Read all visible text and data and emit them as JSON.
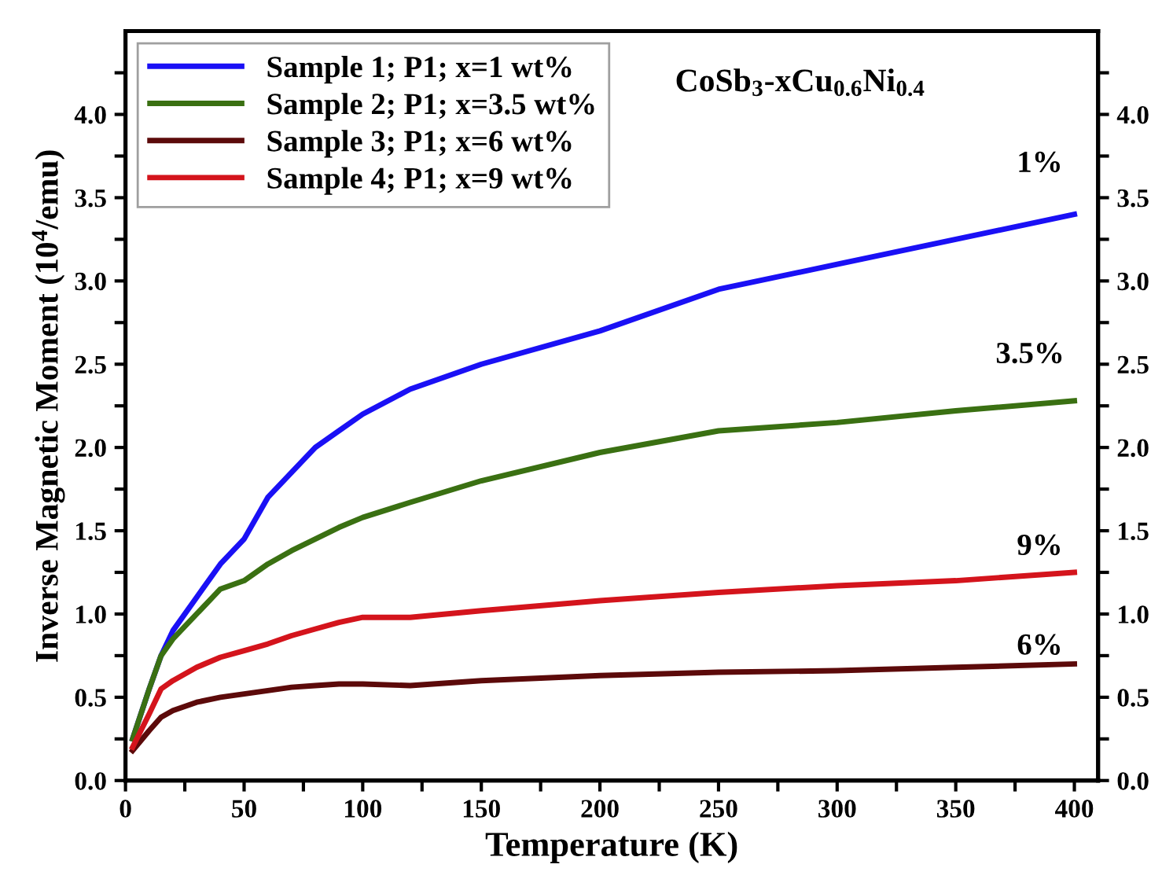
{
  "chart_data": {
    "type": "line",
    "xlabel": "Temperature (K)",
    "ylabel": "Inverse Magnetic Moment (10$^{4}$/emu)",
    "xlim": [
      0,
      410
    ],
    "ylim": [
      0,
      4.5
    ],
    "y2lim": [
      0,
      4.5
    ],
    "xticks": [
      0,
      {
        "value": 25,
        "label": null
      },
      50,
      {
        "value": 75,
        "label": null
      },
      100,
      {
        "value": 125,
        "label": null
      },
      150,
      {
        "value": 175,
        "label": null
      },
      200,
      {
        "value": 225,
        "label": null
      },
      250,
      {
        "value": 275,
        "label": null
      },
      300,
      {
        "value": 325,
        "label": null
      },
      350,
      {
        "value": 375,
        "label": null
      },
      400
    ],
    "yticks": [
      {
        "value": 0,
        "label": "0.0"
      },
      {
        "value": 0.25,
        "label": null
      },
      {
        "value": 0.5,
        "label": "0.5"
      },
      {
        "value": 0.75,
        "label": null
      },
      {
        "value": 1,
        "label": "1.0"
      },
      {
        "value": 1.25,
        "label": null
      },
      {
        "value": 1.5,
        "label": "1.5"
      },
      {
        "value": 1.75,
        "label": null
      },
      {
        "value": 2,
        "label": "2.0"
      },
      {
        "value": 2.25,
        "label": null
      },
      {
        "value": 2.5,
        "label": "2.5"
      },
      {
        "value": 2.75,
        "label": null
      },
      {
        "value": 3,
        "label": "3.0"
      },
      {
        "value": 3.25,
        "label": null
      },
      {
        "value": 3.5,
        "label": "3.5"
      },
      {
        "value": 3.75,
        "label": null
      },
      {
        "value": 4,
        "label": "4.0"
      },
      {
        "value": 4.25,
        "label": null
      }
    ],
    "y2ticks": [
      {
        "value": 0,
        "label": "0.0"
      },
      {
        "value": 0.25,
        "label": null
      },
      {
        "value": 0.5,
        "label": "0.5"
      },
      {
        "value": 0.75,
        "label": null
      },
      {
        "value": 1,
        "label": "1.0"
      },
      {
        "value": 1.25,
        "label": null
      },
      {
        "value": 1.5,
        "label": "1.5"
      },
      {
        "value": 1.75,
        "label": null
      },
      {
        "value": 2,
        "label": "2.0"
      },
      {
        "value": 2.25,
        "label": null
      },
      {
        "value": 2.5,
        "label": "2.5"
      },
      {
        "value": 2.75,
        "label": null
      },
      {
        "value": 3,
        "label": "3.0"
      },
      {
        "value": 3.25,
        "label": null
      },
      {
        "value": 3.5,
        "label": "3.5"
      },
      {
        "value": 3.75,
        "label": null
      },
      {
        "value": 4,
        "label": "4.0"
      },
      {
        "value": 4.25,
        "label": null
      }
    ],
    "x": [
      3,
      10,
      15,
      20,
      30,
      40,
      50,
      60,
      70,
      80,
      90,
      100,
      120,
      150,
      200,
      250,
      300,
      350,
      400
    ],
    "series": [
      {
        "name": "Sample 1; P1; x=1 wt%",
        "color": "#1a10f5",
        "values": [
          0.25,
          0.55,
          0.75,
          0.9,
          1.1,
          1.3,
          1.45,
          1.7,
          1.85,
          2.0,
          2.1,
          2.2,
          2.35,
          2.5,
          2.7,
          2.95,
          3.1,
          3.25,
          3.4
        ]
      },
      {
        "name": "Sample 2; P1; x=3.5 wt%",
        "color": "#3a7012",
        "values": [
          0.25,
          0.55,
          0.75,
          0.85,
          1.0,
          1.15,
          1.2,
          1.3,
          1.38,
          1.45,
          1.52,
          1.58,
          1.67,
          1.8,
          1.97,
          2.1,
          2.15,
          2.22,
          2.28
        ]
      },
      {
        "name": "Sample 3; P1; x=6 wt%",
        "color": "#5c0a0a",
        "values": [
          0.18,
          0.3,
          0.38,
          0.42,
          0.47,
          0.5,
          0.52,
          0.54,
          0.56,
          0.57,
          0.58,
          0.58,
          0.57,
          0.6,
          0.63,
          0.65,
          0.66,
          0.68,
          0.7
        ]
      },
      {
        "name": "Sample 4; P1; x=9 wt%",
        "color": "#d4141c",
        "values": [
          0.2,
          0.4,
          0.55,
          0.6,
          0.68,
          0.74,
          0.78,
          0.82,
          0.87,
          0.91,
          0.95,
          0.98,
          0.98,
          1.02,
          1.08,
          1.13,
          1.17,
          1.2,
          1.25
        ]
      }
    ],
    "annotations": [
      "CoSb$_{3}$-xCu$_{0.6}$Ni$_{0.4}$",
      "1%",
      "3.5%",
      "6%",
      "9%"
    ],
    "legend": "top left",
    "grid": false,
    "marker": "none",
    "line_style": "solid"
  }
}
